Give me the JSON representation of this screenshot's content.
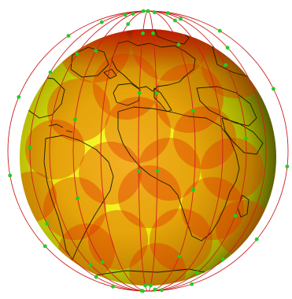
{
  "scene": {
    "globe_colors": {
      "highlight": "#ffff3a",
      "mid": "#d4d600",
      "shadow": "#5f6500",
      "edge": "#303400"
    },
    "footprint_color": "#e03000",
    "footprint_opacity": 0.38,
    "north_cap_color": "#a00000",
    "orbit_color": "#cc2020",
    "satellite_color": "#22cc22",
    "coastline_color": "#1a1a00",
    "satellite_count": 66,
    "orbital_planes": 6
  }
}
